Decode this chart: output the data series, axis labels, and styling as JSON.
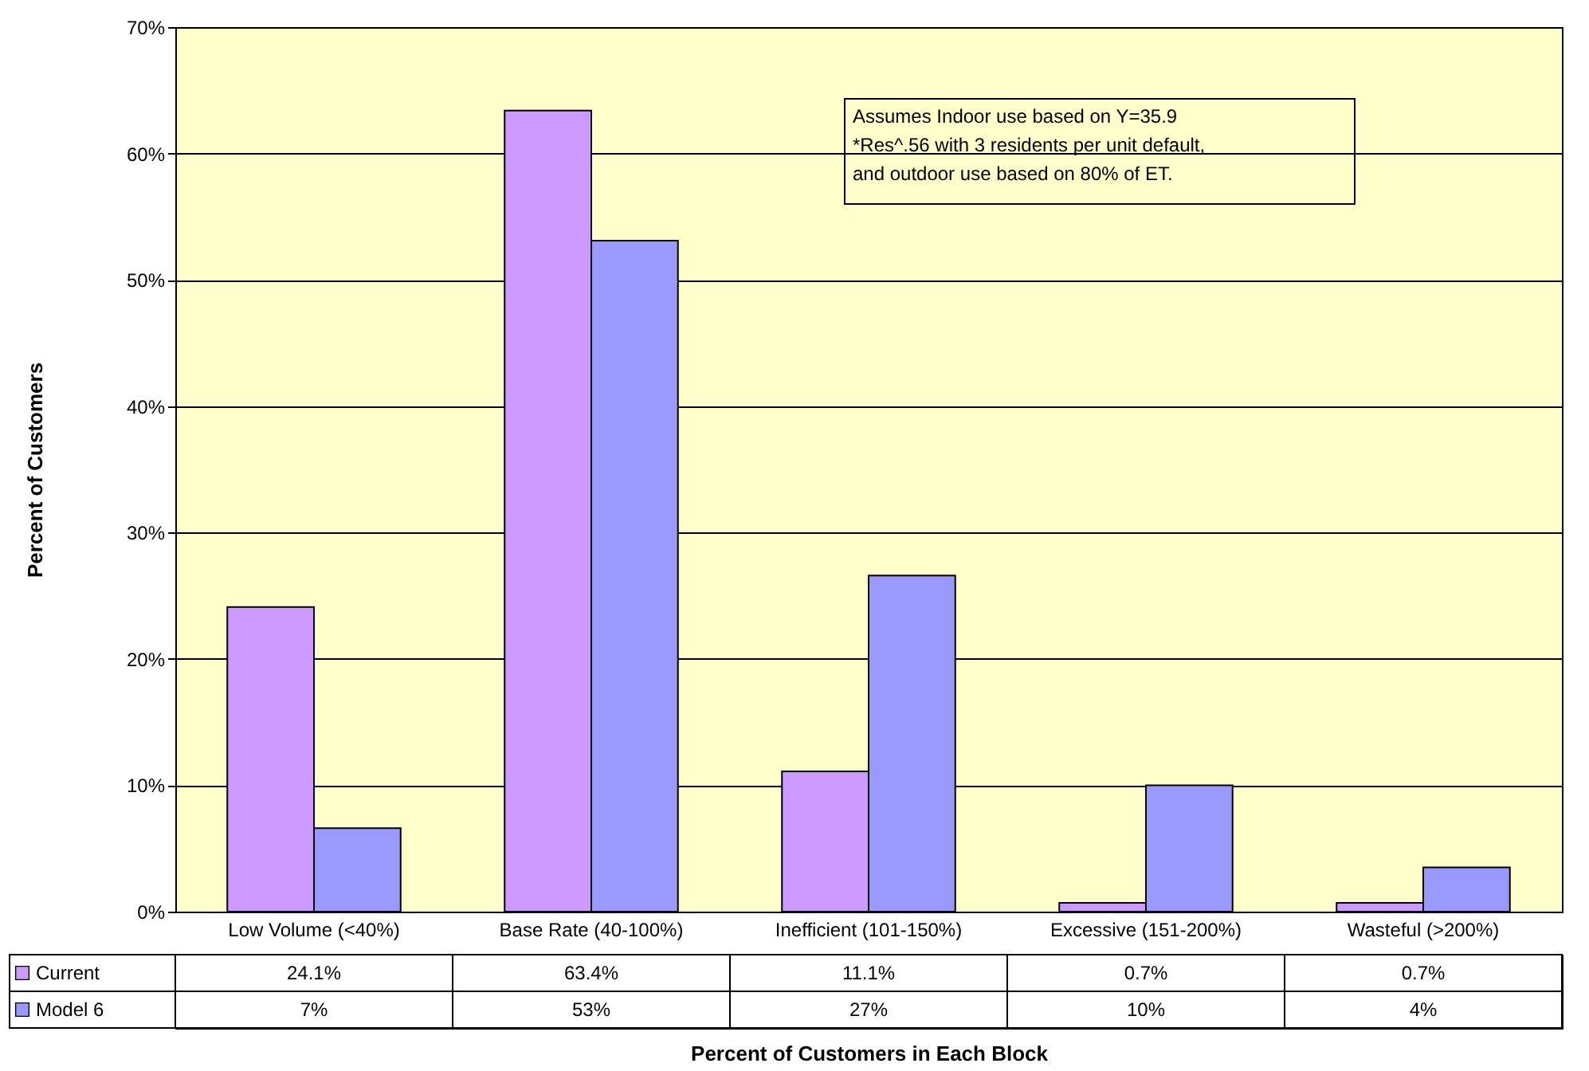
{
  "chart_data": {
    "type": "bar",
    "xlabel": "Percent of Customers in Each Block",
    "ylabel": "Percent of Customers",
    "categories": [
      "Low Volume (<40%)",
      "Base Rate (40-100%)",
      "Inefficient (101-150%)",
      "Excessive (151-200%)",
      "Wasteful (>200%)"
    ],
    "series": [
      {
        "name": "Current",
        "color": "#cc99ff",
        "values": [
          24.1,
          63.4,
          11.1,
          0.7,
          0.7
        ],
        "value_labels": [
          "24.1%",
          "63.4%",
          "11.1%",
          "0.7%",
          "0.7%"
        ]
      },
      {
        "name": "Model 6",
        "color": "#9999ff",
        "values": [
          6.6,
          53.1,
          26.6,
          10.0,
          3.5
        ],
        "value_labels": [
          "7%",
          "53%",
          "27%",
          "10%",
          "4%"
        ]
      }
    ],
    "ylim": [
      0,
      70
    ],
    "yticks": [
      {
        "value": 0,
        "label": "0%"
      },
      {
        "value": 10,
        "label": "10%"
      },
      {
        "value": 20,
        "label": "20%"
      },
      {
        "value": 30,
        "label": "30%"
      },
      {
        "value": 40,
        "label": "40%"
      },
      {
        "value": 50,
        "label": "50%"
      },
      {
        "value": 60,
        "label": "60%"
      },
      {
        "value": 70,
        "label": "70%"
      }
    ],
    "grid": "y",
    "legend": "bottom",
    "annotations": [
      "Assumes Indoor use based on Y=35.9\n*Res^.56 with 3 residents per unit default,\nand outdoor use based on 80% of ET."
    ]
  }
}
